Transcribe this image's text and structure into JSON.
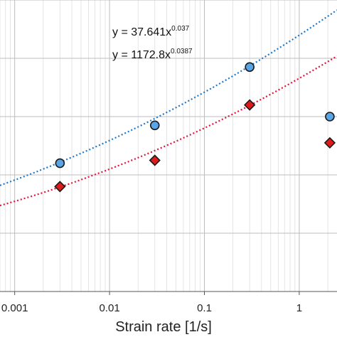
{
  "chart_data": {
    "type": "scatter",
    "xscale": "log",
    "xlim": [
      0.0007,
      2.5
    ],
    "ylim": [
      0,
      1
    ],
    "grid": true,
    "xlabel": "Strain rate [1/s]",
    "ylabel": "",
    "x_tick_labels": [
      "0.001",
      "0.01",
      "0.1",
      "1"
    ],
    "x_ticks": [
      0.001,
      0.01,
      0.1,
      1
    ],
    "series": [
      {
        "marker": "circle",
        "color": "#5aa5e6",
        "trend_color": "#1f78c8",
        "trend_equation": "y = 37.641x",
        "trend_exponent": "0.037",
        "x": [
          0.003,
          0.03,
          0.3,
          2.1
        ],
        "y": [
          0.44,
          0.57,
          0.77,
          0.6
        ]
      },
      {
        "marker": "diamond",
        "color": "#e0191b",
        "trend_color": "#e0143c",
        "trend_equation": "y = 1172.8x",
        "trend_exponent": "0.0387",
        "x": [
          0.003,
          0.03,
          0.3,
          2.1
        ],
        "y": [
          0.36,
          0.45,
          0.64,
          0.51
        ]
      }
    ]
  }
}
